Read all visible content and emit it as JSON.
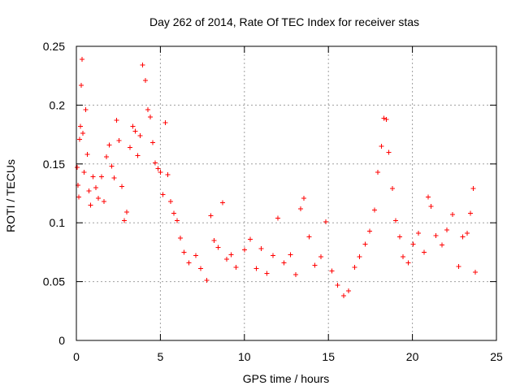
{
  "chart_data": {
    "type": "scatter",
    "title": "Day 262 of 2014, Rate Of TEC Index for receiver stas",
    "xlabel": "GPS time / hours",
    "ylabel": "ROTI / TECUs",
    "xlim": [
      0,
      25
    ],
    "ylim": [
      0,
      0.25
    ],
    "xticks": [
      0,
      5,
      10,
      15,
      20,
      25
    ],
    "yticks": [
      0,
      0.05,
      0.1,
      0.15,
      0.2,
      0.25
    ],
    "xtick_labels": [
      "0",
      "5",
      "10",
      "15",
      "20",
      "25"
    ],
    "ytick_labels": [
      "0",
      "0.05",
      "0.1",
      "0.15",
      "0.2",
      "0.25"
    ],
    "grid": true,
    "marker": "plus",
    "marker_color": "#ff0000",
    "series": [
      {
        "name": "ROTI",
        "points": [
          [
            0.05,
            0.147
          ],
          [
            0.1,
            0.132
          ],
          [
            0.15,
            0.122
          ],
          [
            0.2,
            0.171
          ],
          [
            0.25,
            0.182
          ],
          [
            0.3,
            0.217
          ],
          [
            0.33,
            0.239
          ],
          [
            0.38,
            0.176
          ],
          [
            0.45,
            0.143
          ],
          [
            0.55,
            0.196
          ],
          [
            0.65,
            0.158
          ],
          [
            0.75,
            0.127
          ],
          [
            0.85,
            0.115
          ],
          [
            1.0,
            0.139
          ],
          [
            1.15,
            0.13
          ],
          [
            1.3,
            0.121
          ],
          [
            1.5,
            0.139
          ],
          [
            1.65,
            0.118
          ],
          [
            1.8,
            0.156
          ],
          [
            1.95,
            0.166
          ],
          [
            2.1,
            0.148
          ],
          [
            2.25,
            0.138
          ],
          [
            2.4,
            0.187
          ],
          [
            2.55,
            0.17
          ],
          [
            2.7,
            0.131
          ],
          [
            2.85,
            0.102
          ],
          [
            3.0,
            0.109
          ],
          [
            3.2,
            0.164
          ],
          [
            3.35,
            0.182
          ],
          [
            3.5,
            0.178
          ],
          [
            3.65,
            0.157
          ],
          [
            3.8,
            0.174
          ],
          [
            3.95,
            0.234
          ],
          [
            4.1,
            0.221
          ],
          [
            4.25,
            0.196
          ],
          [
            4.4,
            0.19
          ],
          [
            4.55,
            0.168
          ],
          [
            4.7,
            0.151
          ],
          [
            4.85,
            0.146
          ],
          [
            5.0,
            0.143
          ],
          [
            5.15,
            0.124
          ],
          [
            5.3,
            0.185
          ],
          [
            5.45,
            0.141
          ],
          [
            5.6,
            0.118
          ],
          [
            5.8,
            0.108
          ],
          [
            6.0,
            0.102
          ],
          [
            6.2,
            0.087
          ],
          [
            6.4,
            0.075
          ],
          [
            6.7,
            0.066
          ],
          [
            7.1,
            0.072
          ],
          [
            7.4,
            0.061
          ],
          [
            7.75,
            0.051
          ],
          [
            8.0,
            0.106
          ],
          [
            8.2,
            0.085
          ],
          [
            8.45,
            0.079
          ],
          [
            8.7,
            0.117
          ],
          [
            8.95,
            0.069
          ],
          [
            9.2,
            0.073
          ],
          [
            9.5,
            0.062
          ],
          [
            10.0,
            0.077
          ],
          [
            10.35,
            0.086
          ],
          [
            10.7,
            0.061
          ],
          [
            11.0,
            0.078
          ],
          [
            11.35,
            0.057
          ],
          [
            11.7,
            0.072
          ],
          [
            12.0,
            0.104
          ],
          [
            12.35,
            0.066
          ],
          [
            12.75,
            0.073
          ],
          [
            13.05,
            0.056
          ],
          [
            13.35,
            0.112
          ],
          [
            13.55,
            0.121
          ],
          [
            13.85,
            0.088
          ],
          [
            14.2,
            0.064
          ],
          [
            14.55,
            0.071
          ],
          [
            14.85,
            0.101
          ],
          [
            15.2,
            0.059
          ],
          [
            15.55,
            0.047
          ],
          [
            15.9,
            0.038
          ],
          [
            16.2,
            0.042
          ],
          [
            16.55,
            0.062
          ],
          [
            16.85,
            0.071
          ],
          [
            17.2,
            0.082
          ],
          [
            17.45,
            0.093
          ],
          [
            17.75,
            0.111
          ],
          [
            17.95,
            0.143
          ],
          [
            18.15,
            0.165
          ],
          [
            18.3,
            0.189
          ],
          [
            18.45,
            0.188
          ],
          [
            18.6,
            0.16
          ],
          [
            18.8,
            0.129
          ],
          [
            19.0,
            0.102
          ],
          [
            19.25,
            0.088
          ],
          [
            19.45,
            0.071
          ],
          [
            19.75,
            0.066
          ],
          [
            20.05,
            0.082
          ],
          [
            20.35,
            0.091
          ],
          [
            20.7,
            0.075
          ],
          [
            20.95,
            0.122
          ],
          [
            21.1,
            0.114
          ],
          [
            21.4,
            0.089
          ],
          [
            21.75,
            0.081
          ],
          [
            22.05,
            0.094
          ],
          [
            22.4,
            0.107
          ],
          [
            22.75,
            0.063
          ],
          [
            23.0,
            0.088
          ],
          [
            23.25,
            0.091
          ],
          [
            23.45,
            0.108
          ],
          [
            23.62,
            0.129
          ],
          [
            23.74,
            0.058
          ]
        ]
      }
    ]
  }
}
